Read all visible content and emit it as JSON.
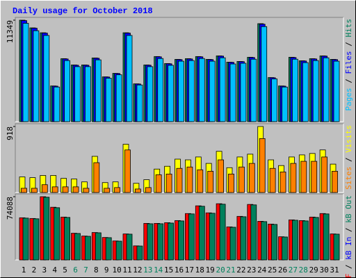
{
  "chart_data": [
    {
      "type": "bar",
      "title": "Daily usage for October 2018",
      "ylim": [
        0,
        11349
      ],
      "yticks": [
        11349
      ],
      "separator": " / ",
      "series": [
        {
          "name": "Hits",
          "color": "#00805c",
          "values": [
            11349,
            10488,
            9940,
            3992,
            7044,
            6340,
            6340,
            7123,
            5009,
            5401,
            9940,
            4227,
            6340,
            7279,
            6496,
            6966,
            7044,
            7279,
            6966,
            7357,
            6653,
            6731,
            7201,
            10958,
            4931,
            3992,
            7201,
            6809,
            7044,
            7357,
            6966
          ]
        },
        {
          "name": "Files",
          "color": "#0000ff",
          "values": [
            11300,
            10450,
            9900,
            3970,
            7010,
            6310,
            6310,
            7090,
            4990,
            5380,
            9900,
            4210,
            6310,
            7250,
            6470,
            6940,
            7010,
            7250,
            6940,
            7330,
            6630,
            6710,
            7170,
            10900,
            4910,
            3970,
            7170,
            6780,
            7010,
            7330,
            6940
          ]
        },
        {
          "name": "Pages",
          "color": "#00c0ff",
          "values": [
            11000,
            10170,
            9640,
            3870,
            6830,
            6150,
            6150,
            6910,
            4860,
            5240,
            9640,
            4100,
            6150,
            7060,
            6300,
            6760,
            6830,
            7060,
            6760,
            7140,
            6450,
            6530,
            6980,
            10630,
            4780,
            3870,
            6980,
            6600,
            6830,
            7140,
            6760
          ]
        }
      ]
    },
    {
      "type": "bar",
      "ylim": [
        0,
        918
      ],
      "yticks": [
        918
      ],
      "separator": " / ",
      "series": [
        {
          "name": "Visits",
          "color": "#ffff00",
          "values": [
            217,
            207,
            237,
            237,
            197,
            188,
            148,
            503,
            138,
            148,
            671,
            128,
            178,
            326,
            365,
            464,
            454,
            494,
            405,
            573,
            345,
            494,
            533,
            918,
            454,
            375,
            494,
            523,
            543,
            592,
            395
          ]
        },
        {
          "name": "Sites",
          "color": "#ff8000",
          "values": [
            59,
            59,
            109,
            79,
            79,
            79,
            59,
            415,
            59,
            69,
            592,
            49,
            69,
            247,
            257,
            336,
            355,
            316,
            296,
            454,
            257,
            355,
            405,
            750,
            336,
            286,
            405,
            434,
            434,
            494,
            296
          ]
        }
      ]
    },
    {
      "type": "bar",
      "ylim": [
        0,
        74088
      ],
      "yticks": [
        74088
      ],
      "separator": " / ",
      "categories": [
        "1",
        "2",
        "3",
        "4",
        "5",
        "6",
        "7",
        "8",
        "9",
        "10",
        "11",
        "12",
        "13",
        "14",
        "15",
        "16",
        "17",
        "18",
        "19",
        "20",
        "21",
        "22",
        "23",
        "24",
        "25",
        "26",
        "27",
        "28",
        "29",
        "30",
        "31"
      ],
      "category_colors": [
        "#000000",
        "#000000",
        "#000000",
        "#000000",
        "#000000",
        "#00805c",
        "#00805c",
        "#000000",
        "#000000",
        "#000000",
        "#000000",
        "#000000",
        "#00805c",
        "#00805c",
        "#000000",
        "#000000",
        "#000000",
        "#000000",
        "#000000",
        "#00805c",
        "#00805c",
        "#000000",
        "#000000",
        "#000000",
        "#000000",
        "#000000",
        "#00805c",
        "#00805c",
        "#000000",
        "#000000",
        "#000000"
      ],
      "series": [
        {
          "name": "kB F",
          "color": "#ff0000",
          "values": [
            49392,
            48569,
            74088,
            61740,
            50215,
            31282,
            27989,
            32105,
            26342,
            22226,
            30458,
            16464,
            42806,
            42806,
            43630,
            46099,
            54331,
            63386,
            55154,
            65856,
            38690,
            51038,
            65033,
            45276,
            41983,
            27166,
            46922,
            46099,
            50215,
            54331,
            30458
          ]
        },
        {
          "name": "kB In",
          "color": "#0000ff",
          "values": [
            null,
            null,
            null,
            null,
            null,
            null,
            null,
            null,
            null,
            null,
            null,
            null,
            null,
            null,
            null,
            null,
            null,
            null,
            null,
            null,
            null,
            null,
            null,
            null,
            null,
            null,
            null,
            null,
            null,
            null,
            null
          ]
        },
        {
          "name": "kB Out",
          "color": "#00805c",
          "values": [
            49000,
            48200,
            73500,
            61200,
            49800,
            31000,
            27700,
            31800,
            26100,
            22000,
            30200,
            16300,
            42400,
            42400,
            43200,
            45700,
            53900,
            62900,
            54700,
            65300,
            38300,
            50600,
            64500,
            44900,
            41600,
            26900,
            46500,
            45700,
            49800,
            53900,
            30200
          ]
        }
      ]
    }
  ]
}
